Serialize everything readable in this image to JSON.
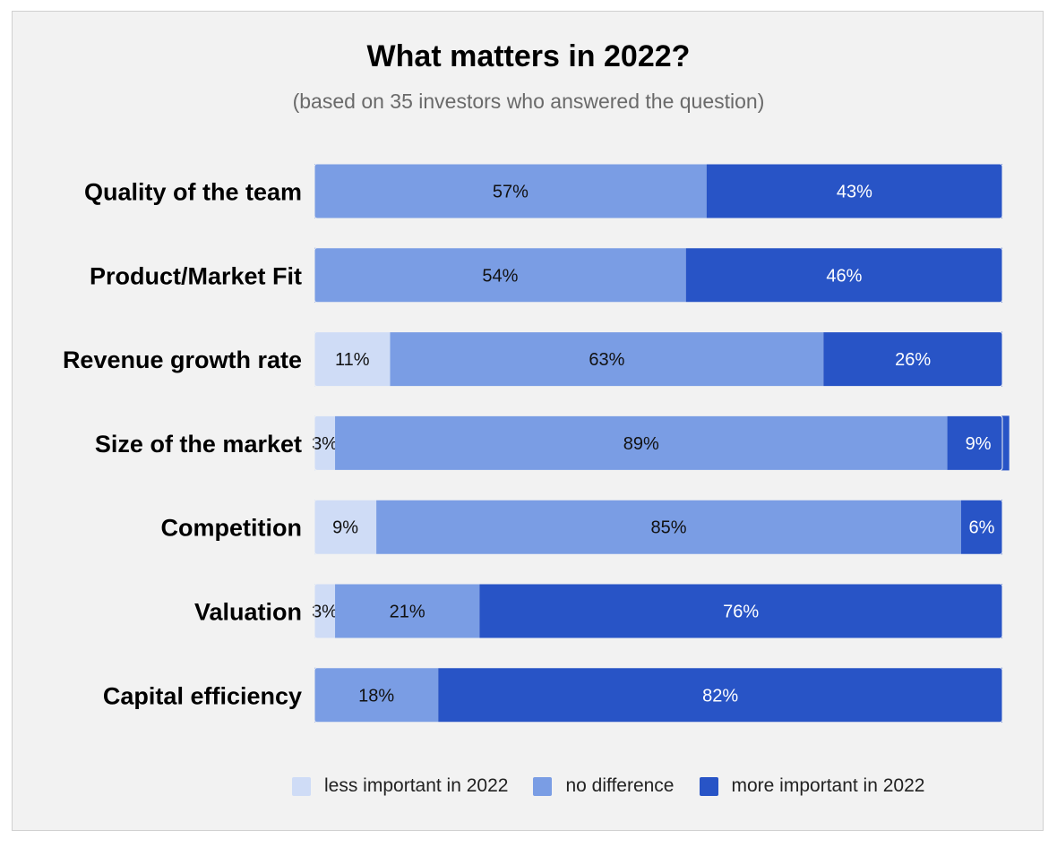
{
  "chart_data": {
    "type": "bar",
    "orientation": "horizontal",
    "stacked": true,
    "title": "What matters in 2022?",
    "subtitle": "(based on 35 investors who answered the question)",
    "categories": [
      "Quality of the team",
      "Product/Market Fit",
      "Revenue growth rate",
      "Size of the market",
      "Competition",
      "Valuation",
      "Capital efficiency"
    ],
    "series": [
      {
        "name": "less important in 2022",
        "color": "#cfdcf6",
        "values": [
          0,
          0,
          11,
          3,
          9,
          3,
          0
        ]
      },
      {
        "name": "no difference",
        "color": "#7a9de4",
        "values": [
          57,
          54,
          63,
          89,
          85,
          21,
          18
        ]
      },
      {
        "name": "more important in 2022",
        "color": "#2854c6",
        "values": [
          43,
          46,
          26,
          9,
          6,
          76,
          82
        ]
      }
    ],
    "value_suffix": "%",
    "xlim": [
      0,
      100
    ],
    "legend_position": "bottom"
  }
}
